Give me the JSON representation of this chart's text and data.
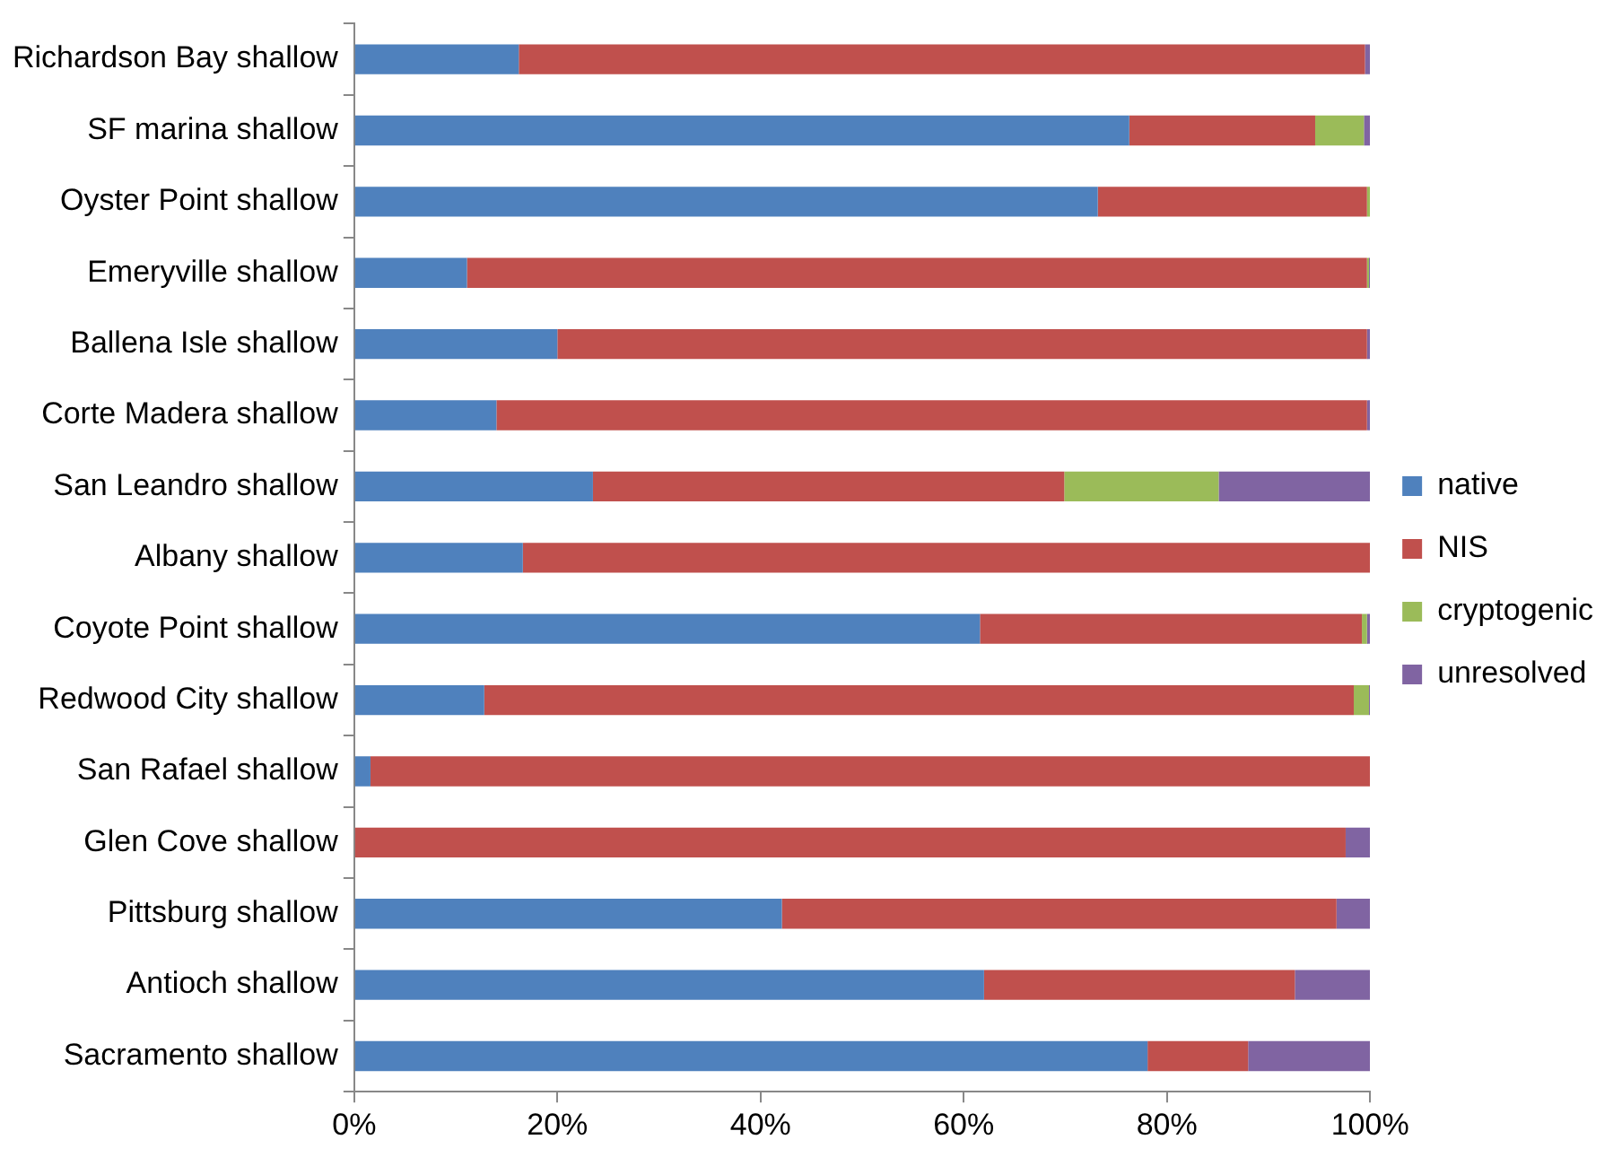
{
  "chart_data": {
    "type": "bar",
    "orientation": "horizontal",
    "stacked": true,
    "categories": [
      "Richardson Bay shallow",
      "SF marina shallow",
      "Oyster Point shallow",
      "Emeryville shallow",
      "Ballena Isle shallow",
      "Corte Madera shallow",
      "San Leandro shallow",
      "Albany shallow",
      "Coyote Point shallow",
      "Redwood City shallow",
      "San Rafael shallow",
      "Glen Cove shallow",
      "Pittsburg shallow",
      "Antioch shallow",
      "Sacramento shallow"
    ],
    "series": [
      {
        "name": "native",
        "color": "#4f81bd",
        "values": [
          16.2,
          76.3,
          73.2,
          11.1,
          20.0,
          14.0,
          23.5,
          16.6,
          61.6,
          12.8,
          1.6,
          0,
          42.1,
          62.0,
          78.1
        ]
      },
      {
        "name": "NIS",
        "color": "#c0504d",
        "values": [
          83.3,
          18.3,
          26.5,
          88.6,
          79.7,
          85.7,
          46.4,
          83.4,
          37.6,
          85.6,
          98.4,
          97.6,
          54.6,
          30.6,
          9.9
        ]
      },
      {
        "name": "cryptogenic",
        "color": "#9bbb59",
        "values": [
          0,
          4.8,
          0.3,
          0.2,
          0,
          0,
          15.2,
          0,
          0.5,
          1.5,
          0,
          0,
          0,
          0,
          0
        ]
      },
      {
        "name": "unresolved",
        "color": "#8064a2",
        "values": [
          0.5,
          0.6,
          0,
          0.1,
          0.3,
          0.3,
          14.9,
          0,
          0.3,
          0.1,
          0,
          2.4,
          3.3,
          7.4,
          12.0
        ]
      }
    ],
    "xlim": [
      0,
      100
    ],
    "xticks": [
      {
        "value": 0,
        "label": "0%"
      },
      {
        "value": 20,
        "label": "20%"
      },
      {
        "value": 40,
        "label": "40%"
      },
      {
        "value": 60,
        "label": "60%"
      },
      {
        "value": 80,
        "label": "80%"
      },
      {
        "value": 100,
        "label": "100%"
      }
    ],
    "grid": false,
    "legend": "right"
  }
}
